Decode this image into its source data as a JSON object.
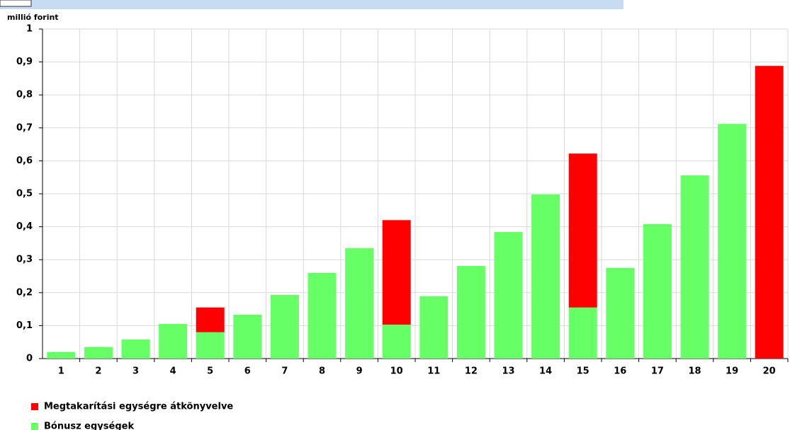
{
  "chart_data": {
    "type": "stacked_bar",
    "y_label": "millió forint",
    "categories": [
      "1",
      "2",
      "3",
      "4",
      "5",
      "6",
      "7",
      "8",
      "9",
      "10",
      "11",
      "12",
      "13",
      "14",
      "15",
      "16",
      "17",
      "18",
      "19",
      "20"
    ],
    "series": [
      {
        "name": "Bónusz egységek",
        "color": "#66ff66",
        "values": [
          0.02,
          0.035,
          0.058,
          0.105,
          0.08,
          0.133,
          0.193,
          0.26,
          0.335,
          0.103,
          0.189,
          0.281,
          0.384,
          0.498,
          0.155,
          0.275,
          0.408,
          0.556,
          0.712,
          0
        ]
      },
      {
        "name": "Megtakarítási egységre átkönyvelve",
        "color": "#ff0000",
        "values": [
          0,
          0,
          0,
          0,
          0.075,
          0,
          0,
          0,
          0,
          0.317,
          0,
          0,
          0,
          0,
          0.467,
          0,
          0,
          0,
          0,
          0.888
        ]
      }
    ],
    "ylim": [
      0,
      1
    ],
    "yticks": [
      0,
      {
        "value": 0.1,
        "label": "0,1"
      },
      {
        "value": 0.2,
        "label": "0,2"
      },
      {
        "value": 0.3,
        "label": "0,3"
      },
      {
        "value": 0.4,
        "label": "0,4"
      },
      {
        "value": 0.5,
        "label": "0,5"
      },
      {
        "value": 0.6,
        "label": "0,6"
      },
      {
        "value": 0.7,
        "label": "0,7"
      },
      {
        "value": 0.8,
        "label": "0,8"
      },
      {
        "value": 0.9,
        "label": "0,9"
      },
      1
    ],
    "grid": true,
    "legend": "bottom-left"
  }
}
